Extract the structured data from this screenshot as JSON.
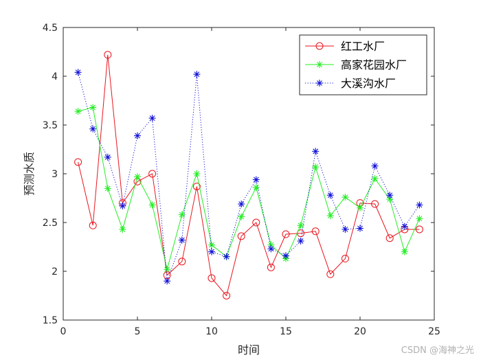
{
  "chart_data": {
    "type": "line",
    "xlabel": "时间",
    "ylabel": "预测水质",
    "xlim": [
      0,
      25
    ],
    "ylim": [
      1.5,
      4.5
    ],
    "xticks": [
      0,
      5,
      10,
      15,
      20,
      25
    ],
    "yticks": [
      1.5,
      2,
      2.5,
      3,
      3.5,
      4,
      4.5
    ],
    "xtick_labels": [
      "0",
      "5",
      "10",
      "15",
      "20",
      "25"
    ],
    "ytick_labels": [
      "1.5",
      "2",
      "2.5",
      "3",
      "3.5",
      "4",
      "4.5"
    ],
    "grid": false,
    "legend_position": "top-right",
    "x": [
      1,
      2,
      3,
      4,
      5,
      6,
      7,
      8,
      9,
      10,
      11,
      12,
      13,
      14,
      15,
      16,
      17,
      18,
      19,
      20,
      21,
      22,
      23,
      24
    ],
    "series": [
      {
        "name": "红工水厂",
        "color": "#e8141c",
        "line_style": "solid",
        "marker": "circle",
        "values": [
          3.12,
          2.47,
          4.22,
          2.7,
          2.92,
          3.0,
          1.96,
          2.1,
          2.87,
          1.93,
          1.75,
          2.36,
          2.5,
          2.04,
          2.38,
          2.39,
          2.41,
          1.97,
          2.13,
          2.7,
          2.69,
          2.34,
          2.43,
          2.43
        ]
      },
      {
        "name": "高家花园水厂",
        "color": "#22ee22",
        "line_style": "solid",
        "marker": "asterisk",
        "values": [
          3.64,
          3.68,
          2.85,
          2.43,
          2.97,
          2.68,
          2.02,
          2.58,
          3.0,
          2.27,
          2.15,
          2.56,
          2.86,
          2.27,
          2.13,
          2.47,
          3.07,
          2.57,
          2.76,
          2.65,
          2.95,
          2.74,
          2.2,
          2.54
        ]
      },
      {
        "name": "大溪沟水厂",
        "color": "#1010d8",
        "line_style": "dotted",
        "marker": "asterisk",
        "values": [
          4.04,
          3.46,
          3.17,
          2.67,
          3.39,
          3.57,
          1.9,
          2.32,
          4.02,
          2.2,
          2.15,
          2.69,
          2.94,
          2.23,
          2.16,
          2.31,
          3.23,
          2.78,
          2.43,
          2.44,
          3.08,
          2.78,
          2.46,
          2.68
        ]
      }
    ]
  },
  "watermark": "CSDN @海神之光"
}
